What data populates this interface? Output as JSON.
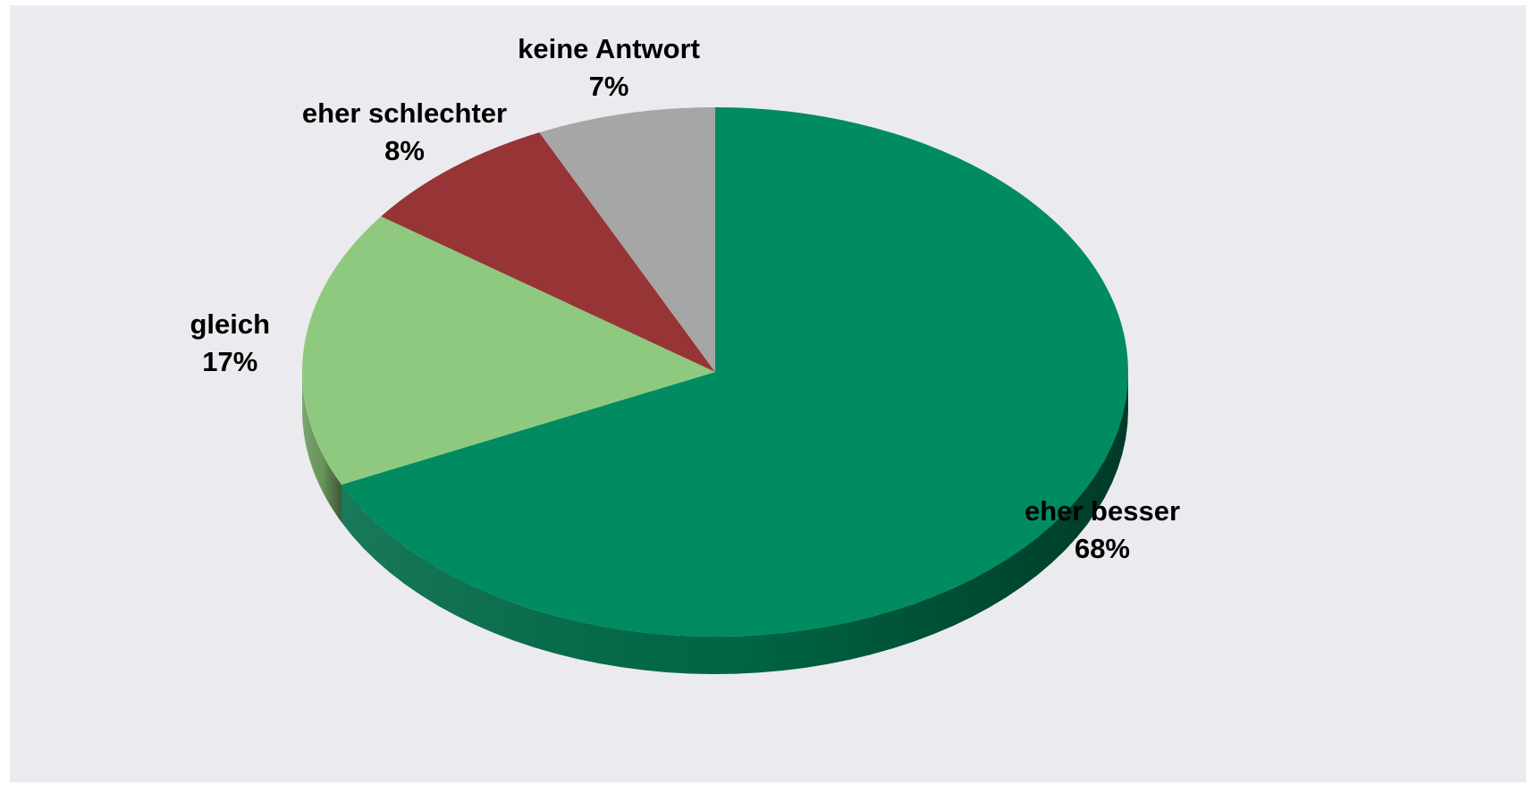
{
  "chart_data": {
    "type": "pie",
    "style": "3d",
    "categories": [
      "eher besser",
      "gleich",
      "eher schlechter",
      "keine Antwort"
    ],
    "values": [
      68,
      17,
      8,
      7
    ],
    "labels": [
      {
        "name": "eher besser",
        "percent": "68%"
      },
      {
        "name": "gleich",
        "percent": "17%"
      },
      {
        "name": "eher schlechter",
        "percent": "8%"
      },
      {
        "name": "keine Antwort",
        "percent": "7%"
      }
    ],
    "colors": [
      "#008c60",
      "#8ec97f",
      "#973435",
      "#a6a6a6"
    ],
    "side_colors": [
      "#006b48",
      "#6f9e62",
      "#6e2526",
      "#7d7d7d"
    ],
    "legend": "none",
    "background": "#ebebef"
  }
}
